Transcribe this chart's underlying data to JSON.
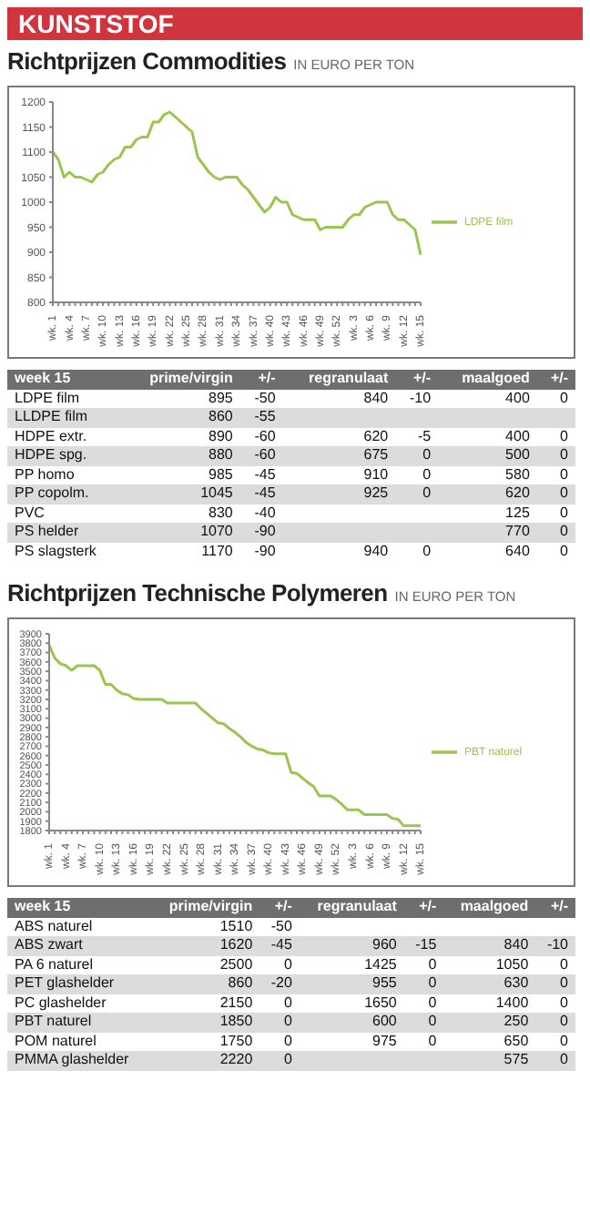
{
  "chart_data": [
    {
      "type": "line",
      "title": "Richtprijzen Commodities",
      "subtitle": "IN EURO PER TON",
      "annotations": [
        "KUNSTSTOF"
      ],
      "categories": [
        "wk. 1",
        null,
        null,
        "wk. 4",
        null,
        null,
        "wk. 7",
        null,
        null,
        "wk. 10",
        null,
        null,
        "wk. 13",
        null,
        null,
        "wk. 16",
        null,
        null,
        "wk. 19",
        null,
        null,
        "wk. 22",
        null,
        null,
        "wk. 25",
        null,
        null,
        "wk. 28",
        null,
        null,
        "wk. 31",
        null,
        null,
        "wk. 34",
        null,
        null,
        "wk. 37",
        null,
        null,
        "wk. 40",
        null,
        null,
        "wk. 43",
        null,
        null,
        "wk. 46",
        null,
        null,
        "wk. 49",
        null,
        null,
        "wk. 52",
        null,
        null,
        "wk. 3",
        null,
        null,
        "wk. 6",
        null,
        null,
        "wk. 9",
        null,
        null,
        "wk. 12",
        null,
        null,
        "wk. 15"
      ],
      "series": [
        {
          "name": "LDPE film",
          "color": "#9bc54e",
          "values": [
            1100,
            1085,
            1050,
            1060,
            1050,
            1050,
            1045,
            1040,
            1055,
            1060,
            1075,
            1085,
            1090,
            1110,
            1110,
            1125,
            1130,
            1130,
            1160,
            1160,
            1175,
            1180,
            1170,
            1160,
            1150,
            1140,
            1090,
            1075,
            1060,
            1050,
            1045,
            1050,
            1050,
            1050,
            1035,
            1025,
            1010,
            995,
            980,
            990,
            1010,
            1000,
            1000,
            975,
            970,
            965,
            965,
            965,
            945,
            950,
            950,
            950,
            950,
            965,
            975,
            975,
            990,
            995,
            1000,
            1000,
            1000,
            975,
            965,
            965,
            955,
            945,
            895
          ]
        }
      ],
      "ylim": [
        800,
        1200
      ],
      "yticks": [
        800,
        850,
        900,
        950,
        1000,
        1050,
        1100,
        1150,
        1200
      ],
      "legend": "right",
      "marker": "none"
    },
    {
      "type": "other",
      "title": "week 15",
      "data_labels": true,
      "categories": [
        "LDPE film",
        "LLDPE film",
        "HDPE extr.",
        "HDPE spg.",
        "PP homo",
        "PP copolm.",
        "PVC",
        "PS helder",
        "PS slagsterk"
      ],
      "series": [
        {
          "name": "prime/virgin",
          "values": [
            895,
            860,
            890,
            880,
            985,
            1045,
            830,
            1070,
            1170
          ]
        },
        {
          "name": "+/-",
          "values": [
            -50,
            -55,
            -60,
            -60,
            -45,
            -45,
            -40,
            -90,
            -90
          ]
        },
        {
          "name": "regranulaat",
          "values": [
            840,
            null,
            620,
            675,
            910,
            925,
            null,
            null,
            940
          ]
        },
        {
          "name": "+/-",
          "values": [
            -10,
            null,
            -5,
            0,
            0,
            0,
            null,
            null,
            0
          ]
        },
        {
          "name": "maalgoed",
          "values": [
            400,
            null,
            400,
            500,
            580,
            620,
            125,
            770,
            640
          ]
        },
        {
          "name": "+/-",
          "values": [
            0,
            null,
            0,
            0,
            0,
            0,
            0,
            0,
            0
          ]
        }
      ]
    },
    {
      "type": "line",
      "title": "Richtprijzen Technische Polymeren",
      "subtitle": "IN EURO PER TON",
      "categories": [
        "wk. 1",
        null,
        null,
        "wk. 4",
        null,
        null,
        "wk. 7",
        null,
        null,
        "wk. 10",
        null,
        null,
        "wk. 13",
        null,
        null,
        "wk. 16",
        null,
        null,
        "wk. 19",
        null,
        null,
        "wk. 22",
        null,
        null,
        "wk. 25",
        null,
        null,
        "wk. 28",
        null,
        null,
        "wk. 31",
        null,
        null,
        "wk. 34",
        null,
        null,
        "wk. 37",
        null,
        null,
        "wk. 40",
        null,
        null,
        "wk. 43",
        null,
        null,
        "wk. 46",
        null,
        null,
        "wk. 49",
        null,
        null,
        "wk. 52",
        null,
        null,
        "wk. 3",
        null,
        null,
        "wk. 6",
        null,
        null,
        "wk. 9",
        null,
        null,
        "wk. 12",
        null,
        null,
        "wk. 15"
      ],
      "series": [
        {
          "name": "PBT naturel",
          "color": "#9bc54e",
          "values": [
            3780,
            3640,
            3580,
            3560,
            3510,
            3560,
            3560,
            3560,
            3560,
            3510,
            3360,
            3360,
            3300,
            3260,
            3250,
            3210,
            3200,
            3200,
            3200,
            3200,
            3200,
            3160,
            3160,
            3160,
            3160,
            3160,
            3160,
            3100,
            3050,
            3000,
            2950,
            2940,
            2890,
            2850,
            2800,
            2740,
            2700,
            2670,
            2660,
            2630,
            2620,
            2620,
            2620,
            2420,
            2410,
            2360,
            2310,
            2270,
            2170,
            2170,
            2170,
            2130,
            2080,
            2020,
            2020,
            2020,
            1970,
            1970,
            1970,
            1970,
            1970,
            1930,
            1920,
            1850,
            1850,
            1850,
            1850
          ]
        }
      ],
      "ylim": [
        1800,
        3900
      ],
      "yticks": [
        1800,
        1900,
        2000,
        2100,
        2200,
        2300,
        2400,
        2500,
        2600,
        2700,
        2800,
        2900,
        3000,
        3100,
        3200,
        3300,
        3400,
        3500,
        3600,
        3700,
        3800,
        3900
      ],
      "legend": "right",
      "marker": "none"
    },
    {
      "type": "other",
      "title": "week 15",
      "data_labels": true,
      "categories": [
        "ABS naturel",
        "ABS zwart",
        "PA 6 naturel",
        "PET glashelder",
        "PC glashelder",
        "PBT naturel",
        "POM naturel",
        "PMMA glashelder"
      ],
      "series": [
        {
          "name": "prime/virgin",
          "values": [
            1510,
            1620,
            2500,
            860,
            2150,
            1850,
            1750,
            2220
          ]
        },
        {
          "name": "+/-",
          "values": [
            -50,
            -45,
            0,
            -20,
            0,
            0,
            0,
            0
          ]
        },
        {
          "name": "regranulaat",
          "values": [
            null,
            960,
            1425,
            955,
            1650,
            600,
            975,
            null
          ]
        },
        {
          "name": "+/-",
          "values": [
            null,
            -15,
            0,
            0,
            0,
            0,
            0,
            null
          ]
        },
        {
          "name": "maalgoed",
          "values": [
            null,
            840,
            1050,
            630,
            1400,
            250,
            650,
            575
          ]
        },
        {
          "name": "+/-",
          "values": [
            null,
            -10,
            0,
            0,
            0,
            0,
            0,
            0
          ]
        }
      ]
    }
  ]
}
